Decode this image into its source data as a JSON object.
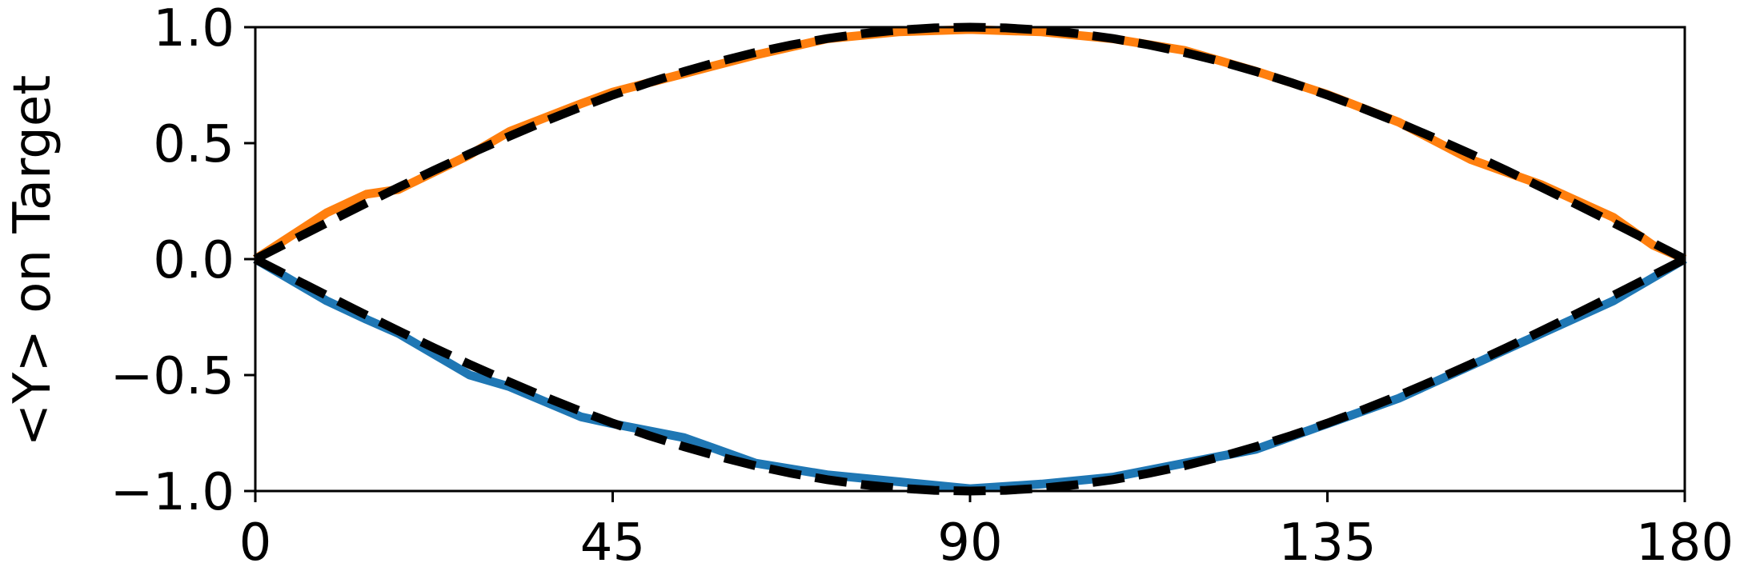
{
  "chart_data": {
    "type": "line",
    "title": "",
    "xlabel": "",
    "ylabel": "<Y> on Target",
    "xlim": [
      0,
      180
    ],
    "ylim": [
      -1.0,
      1.0
    ],
    "grid": false,
    "legend": "none",
    "xticks": [
      0,
      45,
      90,
      135,
      180
    ],
    "xtick_labels": [
      "0",
      "45",
      "90",
      "135",
      "180"
    ],
    "yticks": [
      -1.0,
      -0.5,
      0.0,
      0.5,
      1.0
    ],
    "ytick_labels": [
      "−1.0",
      "−0.5",
      "0.0",
      "0.5",
      "1.0"
    ],
    "series": [
      {
        "color": "#ff7f0e",
        "style": "solid",
        "x": [
          0,
          9,
          14,
          18,
          27,
          32,
          41,
          45,
          54,
          63,
          72,
          81,
          90,
          99,
          108,
          117,
          126,
          135,
          144,
          153,
          162,
          171,
          176,
          180
        ],
        "y": [
          0.0,
          0.2,
          0.28,
          0.3,
          0.45,
          0.55,
          0.67,
          0.72,
          0.8,
          0.88,
          0.95,
          0.98,
          0.99,
          0.98,
          0.95,
          0.9,
          0.81,
          0.71,
          0.59,
          0.43,
          0.32,
          0.18,
          0.06,
          0.0
        ]
      },
      {
        "color": "#1f77b4",
        "style": "solid",
        "x": [
          0,
          9,
          14,
          18,
          27,
          32,
          41,
          45,
          54,
          63,
          72,
          81,
          90,
          99,
          108,
          117,
          126,
          135,
          144,
          153,
          162,
          171,
          176,
          180
        ],
        "y": [
          0.0,
          -0.18,
          -0.26,
          -0.32,
          -0.5,
          -0.55,
          -0.68,
          -0.71,
          -0.77,
          -0.88,
          -0.93,
          -0.96,
          -0.99,
          -0.97,
          -0.94,
          -0.88,
          -0.82,
          -0.71,
          -0.6,
          -0.46,
          -0.32,
          -0.18,
          -0.08,
          0.0
        ]
      },
      {
        "color": "#000000",
        "style": "dashed",
        "x": [
          0,
          4.5,
          9,
          13.5,
          18,
          22.5,
          27,
          31.5,
          36,
          40.5,
          45,
          49.5,
          54,
          58.5,
          63,
          67.5,
          72,
          76.5,
          81,
          85.5,
          90,
          94.5,
          99,
          103.5,
          108,
          112.5,
          117,
          121.5,
          126,
          130.5,
          135,
          139.5,
          144,
          148.5,
          153,
          157.5,
          162,
          166.5,
          171,
          175.5,
          180
        ],
        "y": [
          0.0,
          0.0785,
          0.1564,
          0.2334,
          0.309,
          0.3827,
          0.454,
          0.5225,
          0.5878,
          0.6494,
          0.7071,
          0.7604,
          0.809,
          0.8526,
          0.891,
          0.9239,
          0.9511,
          0.9724,
          0.9877,
          0.9969,
          1.0,
          0.9969,
          0.9877,
          0.9724,
          0.9511,
          0.9239,
          0.891,
          0.8526,
          0.809,
          0.7604,
          0.7071,
          0.6494,
          0.5878,
          0.5225,
          0.454,
          0.3827,
          0.309,
          0.2334,
          0.1564,
          0.0785,
          0.0
        ]
      },
      {
        "color": "#000000",
        "style": "dashed",
        "x": [
          0,
          4.5,
          9,
          13.5,
          18,
          22.5,
          27,
          31.5,
          36,
          40.5,
          45,
          49.5,
          54,
          58.5,
          63,
          67.5,
          72,
          76.5,
          81,
          85.5,
          90,
          94.5,
          99,
          103.5,
          108,
          112.5,
          117,
          121.5,
          126,
          130.5,
          135,
          139.5,
          144,
          148.5,
          153,
          157.5,
          162,
          166.5,
          171,
          175.5,
          180
        ],
        "y": [
          0.0,
          -0.0785,
          -0.1564,
          -0.2334,
          -0.309,
          -0.3827,
          -0.454,
          -0.5225,
          -0.5878,
          -0.6494,
          -0.7071,
          -0.7604,
          -0.809,
          -0.8526,
          -0.891,
          -0.9239,
          -0.9511,
          -0.9724,
          -0.9877,
          -0.9969,
          -1.0,
          -0.9969,
          -0.9877,
          -0.9724,
          -0.9511,
          -0.9239,
          -0.891,
          -0.8526,
          -0.809,
          -0.7604,
          -0.7071,
          -0.6494,
          -0.5878,
          -0.5225,
          -0.454,
          -0.3827,
          -0.309,
          -0.2334,
          -0.1564,
          -0.0785,
          0.0
        ]
      }
    ]
  }
}
